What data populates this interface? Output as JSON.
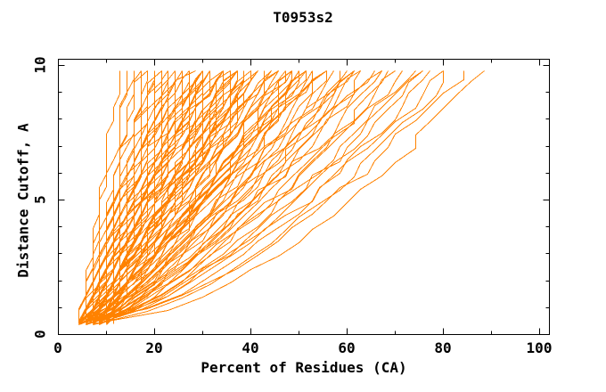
{
  "title": "T0953s2",
  "colors": {
    "background": "#ffffff",
    "axis": "#000000",
    "text": "#000000",
    "curve": "#ff8200"
  },
  "chart_data": {
    "type": "line",
    "title": "T0953s2",
    "xlabel": "Percent of Residues (CA)",
    "ylabel": "Distance Cutoff, A",
    "xlim": [
      0,
      100
    ],
    "ylim": [
      0,
      10
    ],
    "x_major_ticks": [
      0,
      20,
      40,
      60,
      80,
      100
    ],
    "x_minor_step": 10,
    "y_major_ticks": [
      0,
      5,
      10
    ],
    "y_minor_step": 1,
    "grid": false,
    "legend": false,
    "series_color": "#ff8200",
    "n_curves": 110,
    "envelope": {
      "cutoff_start": 0.35,
      "cutoff_end": 9.8,
      "start_percent_range": [
        4,
        10.5
      ],
      "end_percent_range": [
        12,
        87.5
      ],
      "right_envelope_points_percent_vs_cutoff": [
        [
          10,
          0.5
        ],
        [
          25,
          1.5
        ],
        [
          43,
          3.1
        ],
        [
          55,
          4.7
        ],
        [
          67,
          6.4
        ],
        [
          80,
          8.2
        ],
        [
          87,
          9.8
        ]
      ]
    },
    "curve_params_format": "[start_percent, end_percent, shape_exponent, seed]",
    "curves": [
      [
        6.5,
        87.5,
        0.55,
        1
      ],
      [
        5.2,
        84,
        0.6,
        2
      ],
      [
        7.8,
        82,
        0.63,
        3
      ],
      [
        4.4,
        80.5,
        0.66,
        4
      ],
      [
        6.8,
        78,
        0.62,
        5
      ],
      [
        5.1,
        76,
        0.66,
        6
      ],
      [
        8.9,
        74.5,
        0.7,
        7
      ],
      [
        7.3,
        73,
        0.68,
        8
      ],
      [
        4.8,
        71.5,
        0.72,
        9
      ],
      [
        9.6,
        70,
        0.75,
        10
      ],
      [
        5.7,
        69,
        0.7,
        11
      ],
      [
        6.3,
        67.5,
        0.74,
        12
      ],
      [
        8.1,
        66,
        0.78,
        13
      ],
      [
        4.5,
        65,
        0.72,
        14
      ],
      [
        7.7,
        63.5,
        0.76,
        15
      ],
      [
        5.4,
        62.5,
        0.8,
        16
      ],
      [
        9.2,
        61.5,
        0.74,
        17
      ],
      [
        6.0,
        61,
        0.82,
        18
      ],
      [
        8.5,
        60.5,
        0.78,
        19
      ],
      [
        4.9,
        60,
        0.84,
        20
      ],
      [
        7.0,
        59,
        0.76,
        21
      ],
      [
        5.9,
        58,
        0.8,
        22
      ],
      [
        10.3,
        57,
        0.84,
        23
      ],
      [
        4.2,
        56,
        0.78,
        24
      ],
      [
        6.8,
        55,
        0.82,
        25
      ],
      [
        5.1,
        54,
        0.86,
        26
      ],
      [
        8.9,
        53,
        0.8,
        27
      ],
      [
        7.3,
        52.5,
        0.84,
        28
      ],
      [
        4.8,
        52,
        0.88,
        29
      ],
      [
        9.6,
        51.5,
        0.82,
        30
      ],
      [
        5.7,
        51,
        0.86,
        31
      ],
      [
        6.3,
        50.8,
        0.9,
        32
      ],
      [
        8.1,
        50.4,
        0.84,
        33
      ],
      [
        4.5,
        50,
        0.88,
        34
      ],
      [
        7.7,
        49.5,
        0.82,
        35
      ],
      [
        5.4,
        49,
        0.86,
        36
      ],
      [
        9.2,
        48.2,
        0.9,
        37
      ],
      [
        6.0,
        47.5,
        0.84,
        38
      ],
      [
        8.5,
        47,
        0.88,
        39
      ],
      [
        4.9,
        46.4,
        0.92,
        40
      ],
      [
        7.0,
        45.8,
        0.86,
        41
      ],
      [
        5.9,
        45.2,
        0.9,
        42
      ],
      [
        10.3,
        44.6,
        0.94,
        43
      ],
      [
        4.2,
        44,
        0.88,
        44
      ],
      [
        6.8,
        43.5,
        0.92,
        45
      ],
      [
        5.1,
        43,
        0.96,
        46
      ],
      [
        8.9,
        42.5,
        0.9,
        47
      ],
      [
        7.3,
        42,
        0.94,
        48
      ],
      [
        4.8,
        41.6,
        0.98,
        49
      ],
      [
        9.6,
        41.2,
        0.92,
        50
      ],
      [
        5.7,
        40.9,
        0.96,
        51
      ],
      [
        6.3,
        40.6,
        1.0,
        52
      ],
      [
        8.1,
        40.3,
        0.94,
        53
      ],
      [
        4.5,
        40,
        0.98,
        54
      ],
      [
        7.7,
        39.6,
        0.92,
        55
      ],
      [
        5.4,
        39.2,
        0.96,
        56
      ],
      [
        9.2,
        38.8,
        1.0,
        57
      ],
      [
        6.0,
        38.3,
        0.94,
        58
      ],
      [
        8.5,
        37.9,
        0.98,
        59
      ],
      [
        4.9,
        37.5,
        1.02,
        60
      ],
      [
        7.0,
        37,
        0.96,
        61
      ],
      [
        5.9,
        36.6,
        1.0,
        62
      ],
      [
        10.3,
        36.2,
        1.04,
        63
      ],
      [
        4.2,
        35.8,
        0.98,
        64
      ],
      [
        6.8,
        35.4,
        1.02,
        65
      ],
      [
        5.1,
        35,
        1.06,
        66
      ],
      [
        8.9,
        34.6,
        1.0,
        67
      ],
      [
        7.3,
        34.2,
        1.04,
        68
      ],
      [
        4.8,
        33.8,
        1.08,
        69
      ],
      [
        9.6,
        33.4,
        1.02,
        70
      ],
      [
        5.7,
        33,
        1.06,
        71
      ],
      [
        6.3,
        32.6,
        1.1,
        72
      ],
      [
        8.1,
        32.2,
        1.04,
        73
      ],
      [
        4.5,
        31.8,
        1.08,
        74
      ],
      [
        7.7,
        31.4,
        1.12,
        75
      ],
      [
        5.4,
        31,
        1.06,
        76
      ],
      [
        9.2,
        30.7,
        1.1,
        77
      ],
      [
        6.0,
        30.4,
        1.14,
        78
      ],
      [
        8.5,
        30.2,
        1.08,
        79
      ],
      [
        4.9,
        30,
        1.12,
        80
      ],
      [
        7.0,
        29.6,
        1.0,
        81
      ],
      [
        5.9,
        29.1,
        1.04,
        82
      ],
      [
        10.3,
        28.6,
        1.08,
        83
      ],
      [
        4.2,
        28.1,
        1.02,
        84
      ],
      [
        6.8,
        27.7,
        1.06,
        85
      ],
      [
        5.1,
        27.2,
        1.1,
        86
      ],
      [
        8.9,
        26.8,
        1.04,
        87
      ],
      [
        7.3,
        26.3,
        1.08,
        88
      ],
      [
        4.8,
        25.9,
        1.12,
        89
      ],
      [
        9.6,
        25.4,
        1.06,
        90
      ],
      [
        5.7,
        25,
        1.1,
        91
      ],
      [
        6.3,
        24.5,
        1.14,
        92
      ],
      [
        8.1,
        24.1,
        1.08,
        93
      ],
      [
        4.5,
        23.6,
        1.12,
        94
      ],
      [
        7.7,
        23.2,
        1.16,
        95
      ],
      [
        5.4,
        22.8,
        1.1,
        96
      ],
      [
        9.2,
        22.3,
        1.14,
        97
      ],
      [
        6.0,
        21.9,
        1.18,
        98
      ],
      [
        8.5,
        21.5,
        1.12,
        99
      ],
      [
        4.9,
        21,
        1.16,
        100
      ],
      [
        7.0,
        20.6,
        1.1,
        101
      ],
      [
        5.9,
        20.2,
        1.14,
        102
      ],
      [
        6.5,
        19.5,
        1.05,
        103
      ],
      [
        5.2,
        18.6,
        1.1,
        104
      ],
      [
        7.8,
        17.8,
        1.15,
        105
      ],
      [
        4.4,
        17,
        1.08,
        106
      ],
      [
        6.8,
        16.2,
        1.12,
        107
      ],
      [
        5.1,
        15.3,
        1.16,
        108
      ],
      [
        8.2,
        14.2,
        1.1,
        109
      ],
      [
        4.6,
        12.8,
        1.05,
        110
      ]
    ]
  }
}
